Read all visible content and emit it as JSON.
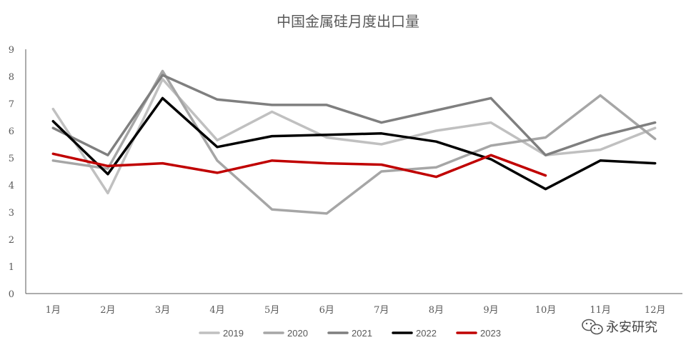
{
  "chart_data": {
    "type": "line",
    "title": "中国金属硅月度出口量",
    "categories": [
      "1月",
      "2月",
      "3月",
      "4月",
      "5月",
      "6月",
      "7月",
      "8月",
      "9月",
      "10月",
      "11月",
      "12月"
    ],
    "ylim": [
      0,
      9
    ],
    "yticks": [
      "0",
      "1",
      "2",
      "3",
      "4",
      "5",
      "6",
      "7",
      "8",
      "9"
    ],
    "grid": false,
    "legend_position": "bottom",
    "series": [
      {
        "name": "2019",
        "color": "#c0c0c0",
        "values": [
          6.8,
          3.7,
          7.9,
          5.65,
          6.7,
          5.75,
          5.5,
          6.0,
          6.3,
          5.1,
          5.3,
          6.1
        ]
      },
      {
        "name": "2020",
        "color": "#a6a6a6",
        "values": [
          4.9,
          4.6,
          8.2,
          4.9,
          3.1,
          2.95,
          4.5,
          4.65,
          5.45,
          5.75,
          7.3,
          5.7
        ]
      },
      {
        "name": "2021",
        "color": "#7f7f7f",
        "values": [
          6.1,
          5.1,
          8.05,
          7.15,
          6.95,
          6.95,
          6.3,
          6.75,
          7.2,
          5.1,
          5.8,
          6.3
        ]
      },
      {
        "name": "2022",
        "color": "#000000",
        "values": [
          6.35,
          4.4,
          7.2,
          5.4,
          5.8,
          5.85,
          5.9,
          5.6,
          4.95,
          3.85,
          4.9,
          4.8
        ]
      },
      {
        "name": "2023",
        "color": "#c00000",
        "values": [
          5.15,
          4.7,
          4.8,
          4.45,
          4.9,
          4.8,
          4.75,
          4.3,
          5.1,
          4.35,
          null,
          null
        ]
      }
    ]
  },
  "watermark": {
    "text": "永安研究",
    "icon": "wechat-icon"
  }
}
